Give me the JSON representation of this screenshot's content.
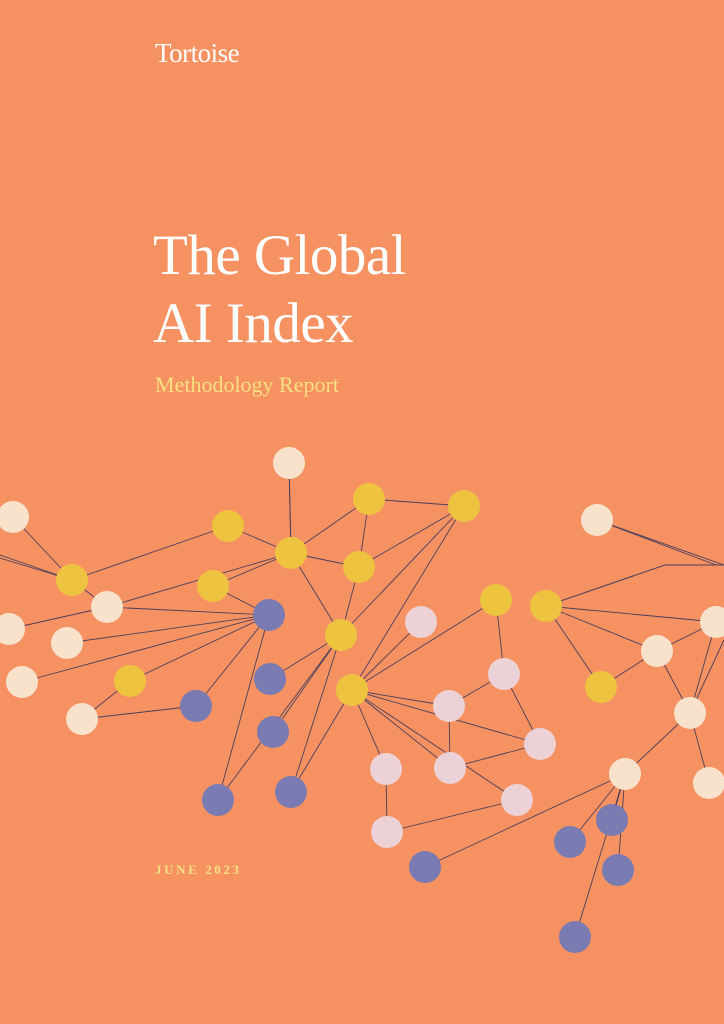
{
  "brand": {
    "logo_text": "Tortoise"
  },
  "cover": {
    "title_line_1": "The Global",
    "title_line_2": "AI Index",
    "subtitle": "Methodology Report",
    "date": "JUNE 2023"
  },
  "colors": {
    "background": "#f69262",
    "title_text": "#ffffff",
    "accent_text": "#f7e07f",
    "node_cream": "#f9e2cc",
    "node_yellow": "#eec33f",
    "node_blue": "#7a7bb2",
    "node_pink": "#ecd2d6",
    "edge": "#4a3f5c"
  }
}
